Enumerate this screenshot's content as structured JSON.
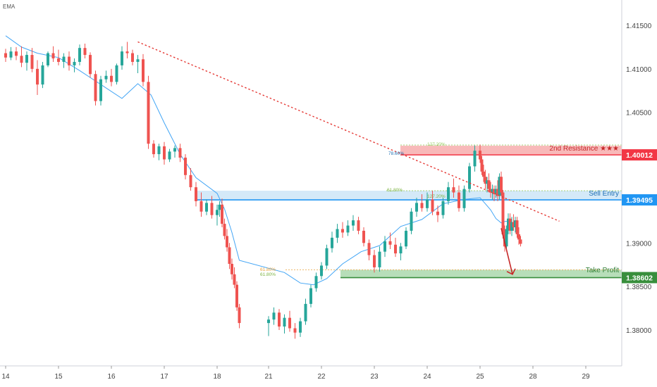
{
  "indicator_label": "EMA",
  "colors": {
    "up": "#26a69a",
    "down": "#ef5350",
    "ema": "#42a5f5",
    "trendline": "#e53935",
    "resistance_zone": "#f6a7a7",
    "resistance_badge": "#f23645",
    "entry_zone": "#cfe7f7",
    "entry_line": "#2196f3",
    "profit_zone": "#a5d6a7",
    "profit_line": "#388e3c",
    "arrow": "#c62828",
    "fib_orange": "#e8a23a"
  },
  "price_axis": {
    "ticks": [
      "1.41500",
      "1.41000",
      "1.40500",
      "1.40000",
      "1.39500",
      "1.39000",
      "1.38500",
      "1.38000"
    ]
  },
  "time_axis": {
    "ticks": [
      "14",
      "15",
      "16",
      "17",
      "18",
      "21",
      "22",
      "23",
      "24",
      "25",
      "28",
      "29"
    ]
  },
  "levels": {
    "resistance": {
      "label": "2nd Resistance ★★★",
      "price": "1.40012",
      "price_value": 1.40012
    },
    "entry": {
      "label": "Sell Entry",
      "price": "1.39495",
      "price_value": 1.39495
    },
    "take_profit": {
      "label": "Take Profit",
      "price": "1.38602",
      "price_value": 1.38602
    }
  },
  "fib_labels": {
    "r1": "78.60%",
    "r2": "127.20%",
    "e1": "61.80%",
    "e2": "127.20%",
    "t1": "61.80%",
    "t2": "61.80%"
  },
  "chart_data": {
    "type": "candlestick",
    "x_unit": "trading day",
    "ylim": [
      1.3755,
      1.4192
    ],
    "annotations": [
      "2nd Resistance ★★★ 1.40012",
      "Sell Entry 1.39495",
      "Take Profit 1.38602"
    ],
    "trendline": {
      "from": [
        "16",
        1.4131
      ],
      "to": [
        "28",
        1.3925
      ]
    },
    "ema_path": [
      [
        14,
        1.4138
      ],
      [
        14.3,
        1.4125
      ],
      [
        14.6,
        1.4118
      ],
      [
        15,
        1.4113
      ],
      [
        15.4,
        1.4098
      ],
      [
        15.8,
        1.4082
      ],
      [
        16.2,
        1.4066
      ],
      [
        16.5,
        1.4083
      ],
      [
        16.75,
        1.407
      ],
      [
        17,
        1.4038
      ],
      [
        17.3,
        1.4002
      ],
      [
        17.6,
        1.3975
      ],
      [
        18,
        1.3957
      ],
      [
        18.3,
        1.3939
      ],
      [
        18.6,
        1.3912
      ],
      [
        18.9,
        1.388
      ],
      [
        19.3,
        1.3866
      ],
      [
        19.6,
        1.3854
      ],
      [
        19.85,
        1.3852
      ],
      [
        20.1,
        1.3859
      ],
      [
        20.4,
        1.3876
      ],
      [
        20.75,
        1.389
      ],
      [
        21.1,
        1.3897
      ],
      [
        21.5,
        1.3919
      ],
      [
        21.9,
        1.3927
      ],
      [
        22.3,
        1.3945
      ],
      [
        22.7,
        1.395
      ],
      [
        23,
        1.3952
      ],
      [
        23.3,
        1.3945
      ],
      [
        23.6,
        1.3938
      ],
      [
        23.9,
        1.3928
      ],
      [
        24.2,
        1.3923
      ],
      [
        24.45,
        1.3925
      ],
      [
        24.8,
        1.3924
      ],
      [
        25,
        1.392
      ]
    ],
    "ohlc": [
      [
        14.0,
        1.4118,
        1.4123,
        1.4108,
        1.4113
      ],
      [
        14.1,
        1.4113,
        1.4125,
        1.411,
        1.412
      ],
      [
        14.2,
        1.412,
        1.4125,
        1.411,
        1.4115
      ],
      [
        14.3,
        1.4115,
        1.4126,
        1.4102,
        1.4107
      ],
      [
        14.4,
        1.4107,
        1.412,
        1.4098,
        1.4116
      ],
      [
        14.5,
        1.4116,
        1.4124,
        1.4096,
        1.41
      ],
      [
        14.6,
        1.41,
        1.411,
        1.407,
        1.4082
      ],
      [
        14.7,
        1.4082,
        1.4108,
        1.4078,
        1.4104
      ],
      [
        14.8,
        1.4104,
        1.412,
        1.4102,
        1.4118
      ],
      [
        14.9,
        1.4118,
        1.4126,
        1.4108,
        1.4112
      ],
      [
        15.0,
        1.4112,
        1.4122,
        1.4104,
        1.4108
      ],
      [
        15.1,
        1.4108,
        1.4118,
        1.4101,
        1.4114
      ],
      [
        15.2,
        1.4114,
        1.412,
        1.4098,
        1.4104
      ],
      [
        15.3,
        1.4104,
        1.4112,
        1.4096,
        1.4108
      ],
      [
        15.4,
        1.4108,
        1.4128,
        1.4104,
        1.4124
      ],
      [
        15.5,
        1.4124,
        1.4129,
        1.4112,
        1.4116
      ],
      [
        15.6,
        1.4116,
        1.4119,
        1.409,
        1.4094
      ],
      [
        15.7,
        1.4094,
        1.4098,
        1.4058,
        1.4063
      ],
      [
        15.8,
        1.4063,
        1.4092,
        1.4058,
        1.4088
      ],
      [
        15.9,
        1.4088,
        1.4098,
        1.4084,
        1.4092
      ],
      [
        16.0,
        1.4092,
        1.41,
        1.408,
        1.4085
      ],
      [
        16.1,
        1.4085,
        1.4106,
        1.4082,
        1.4104
      ],
      [
        16.2,
        1.4104,
        1.4126,
        1.4099,
        1.412
      ],
      [
        16.3,
        1.412,
        1.4131,
        1.4112,
        1.4118
      ],
      [
        16.4,
        1.4118,
        1.4122,
        1.4104,
        1.4108
      ],
      [
        16.5,
        1.4108,
        1.4116,
        1.4095,
        1.4111
      ],
      [
        16.6,
        1.4111,
        1.4117,
        1.408,
        1.4085
      ],
      [
        16.7,
        1.4085,
        1.4092,
        1.4008,
        1.4014
      ],
      [
        16.8,
        1.4014,
        1.4018,
        1.3998,
        1.4002
      ],
      [
        16.9,
        1.4002,
        1.4014,
        1.3995,
        1.4011
      ],
      [
        17.0,
        1.4011,
        1.4016,
        1.399,
        1.3996
      ],
      [
        17.1,
        1.3996,
        1.4008,
        1.3993,
        1.4005
      ],
      [
        17.2,
        1.4005,
        1.4012,
        1.3998,
        1.4009
      ],
      [
        17.3,
        1.4009,
        1.4014,
        1.3993,
        1.3998
      ],
      [
        17.4,
        1.3998,
        1.4002,
        1.3973,
        1.3978
      ],
      [
        17.5,
        1.3978,
        1.3986,
        1.396,
        1.3964
      ],
      [
        17.6,
        1.3964,
        1.397,
        1.3942,
        1.3948
      ],
      [
        17.7,
        1.3948,
        1.3958,
        1.393,
        1.3936
      ],
      [
        17.8,
        1.3936,
        1.395,
        1.3932,
        1.3946
      ],
      [
        17.9,
        1.3946,
        1.3954,
        1.3928,
        1.3932
      ],
      [
        18.0,
        1.3932,
        1.3944,
        1.392,
        1.3938
      ],
      [
        18.1,
        1.3938,
        1.3948,
        1.393,
        1.3944
      ],
      [
        18.2,
        1.3944,
        1.3951,
        1.3918,
        1.3922
      ],
      [
        18.3,
        1.3922,
        1.3928,
        1.3904,
        1.3908
      ],
      [
        18.4,
        1.3908,
        1.3916,
        1.389,
        1.3895
      ],
      [
        18.5,
        1.3895,
        1.39,
        1.387,
        1.3876
      ],
      [
        18.6,
        1.3876,
        1.3882,
        1.3858,
        1.3864
      ],
      [
        18.7,
        1.3864,
        1.3872,
        1.3848,
        1.3852
      ],
      [
        18.8,
        1.3852,
        1.3856,
        1.3822,
        1.3826
      ],
      [
        18.9,
        1.3826,
        1.383,
        1.3802,
        1.3808
      ],
      [
        19.0,
        1.3808,
        1.3816,
        1.3793,
        1.3812
      ],
      [
        19.1,
        1.3812,
        1.3826,
        1.3806,
        1.382
      ],
      [
        19.2,
        1.382,
        1.3824,
        1.38,
        1.3804
      ],
      [
        19.3,
        1.3804,
        1.3818,
        1.3796,
        1.3814
      ],
      [
        19.4,
        1.3814,
        1.3822,
        1.3798,
        1.3802
      ],
      [
        19.5,
        1.3802,
        1.3808,
        1.379,
        1.3797
      ],
      [
        19.6,
        1.3797,
        1.3814,
        1.3792,
        1.381
      ],
      [
        19.7,
        1.381,
        1.3836,
        1.3806,
        1.383
      ],
      [
        19.8,
        1.383,
        1.3852,
        1.3826,
        1.3848
      ],
      [
        19.9,
        1.3848,
        1.3866,
        1.3844,
        1.3862
      ],
      [
        20.0,
        1.3862,
        1.3878,
        1.3858,
        1.3874
      ],
      [
        20.1,
        1.3874,
        1.3898,
        1.387,
        1.3894
      ],
      [
        20.2,
        1.3894,
        1.3913,
        1.3889,
        1.3906
      ],
      [
        20.3,
        1.3906,
        1.3922,
        1.39,
        1.3916
      ],
      [
        20.4,
        1.3916,
        1.3924,
        1.3906,
        1.3912
      ],
      [
        20.5,
        1.3912,
        1.3926,
        1.3908,
        1.392
      ],
      [
        20.6,
        1.392,
        1.3932,
        1.3914,
        1.3926
      ],
      [
        20.7,
        1.3926,
        1.393,
        1.391,
        1.3914
      ],
      [
        20.8,
        1.3914,
        1.3918,
        1.3896,
        1.39
      ],
      [
        20.9,
        1.39,
        1.3904,
        1.388,
        1.3886
      ],
      [
        21.0,
        1.3886,
        1.3892,
        1.3866,
        1.3872
      ],
      [
        21.1,
        1.3872,
        1.3896,
        1.3867,
        1.389
      ],
      [
        21.2,
        1.389,
        1.3908,
        1.3884,
        1.3902
      ],
      [
        21.3,
        1.3902,
        1.3912,
        1.3893,
        1.3898
      ],
      [
        21.4,
        1.3898,
        1.3906,
        1.3884,
        1.3888
      ],
      [
        21.5,
        1.3888,
        1.39,
        1.388,
        1.3896
      ],
      [
        21.6,
        1.3896,
        1.3918,
        1.3893,
        1.3914
      ],
      [
        21.7,
        1.3914,
        1.394,
        1.391,
        1.3936
      ],
      [
        21.8,
        1.3936,
        1.3952,
        1.393,
        1.3946
      ],
      [
        21.9,
        1.3946,
        1.3956,
        1.3936,
        1.394
      ],
      [
        22.0,
        1.394,
        1.3958,
        1.3936,
        1.395
      ],
      [
        22.1,
        1.395,
        1.396,
        1.3932,
        1.3936
      ],
      [
        22.2,
        1.3936,
        1.3943,
        1.3924,
        1.3932
      ],
      [
        22.3,
        1.3932,
        1.3952,
        1.3928,
        1.3948
      ],
      [
        22.4,
        1.3948,
        1.397,
        1.3944,
        1.3964
      ],
      [
        22.5,
        1.3964,
        1.3974,
        1.3952,
        1.3958
      ],
      [
        22.6,
        1.3958,
        1.3966,
        1.3936,
        1.394
      ],
      [
        22.7,
        1.394,
        1.3966,
        1.3936,
        1.3962
      ],
      [
        22.8,
        1.3962,
        1.3992,
        1.3958,
        1.3988
      ],
      [
        22.9,
        1.3988,
        1.4012,
        1.3982,
        1.4006
      ],
      [
        23.0,
        1.4006,
        1.4013,
        1.3992,
        1.3996
      ],
      [
        23.1,
        1.3996,
        1.4,
        1.3978,
        1.3982
      ],
      [
        23.2,
        1.3982,
        1.399,
        1.397,
        1.3976
      ],
      [
        23.3,
        1.3976,
        1.3984,
        1.3962,
        1.3968
      ],
      [
        23.4,
        1.3968,
        1.3976,
        1.3958,
        1.3972
      ],
      [
        23.5,
        1.3972,
        1.398,
        1.3958,
        1.3962
      ],
      [
        23.6,
        1.3962,
        1.397,
        1.3952,
        1.3958
      ],
      [
        23.7,
        1.3958,
        1.3967,
        1.395,
        1.3962
      ],
      [
        23.8,
        1.3962,
        1.3966,
        1.3948,
        1.3956
      ],
      [
        23.9,
        1.3956,
        1.3966,
        1.3952,
        1.3962
      ],
      [
        24.0,
        1.3962,
        1.3972,
        1.3948,
        1.3954
      ],
      [
        24.1,
        1.3954,
        1.398,
        1.395,
        1.3976
      ],
      [
        24.2,
        1.3976,
        1.3982,
        1.3954,
        1.3958
      ],
      [
        24.3,
        1.3958,
        1.3961,
        1.3905,
        1.391
      ],
      [
        24.4,
        1.391,
        1.392,
        1.389,
        1.3896
      ],
      [
        24.5,
        1.3896,
        1.392,
        1.3892,
        1.3916
      ],
      [
        24.6,
        1.3916,
        1.3934,
        1.391,
        1.3928
      ],
      [
        24.7,
        1.3928,
        1.3934,
        1.391,
        1.3914
      ],
      [
        24.8,
        1.3914,
        1.393,
        1.3908,
        1.3924
      ],
      [
        24.9,
        1.3924,
        1.3933,
        1.3914,
        1.3918
      ],
      [
        25.0,
        1.3918,
        1.393,
        1.3912,
        1.3926
      ],
      [
        25.1,
        1.3926,
        1.393,
        1.3906,
        1.391
      ],
      [
        25.2,
        1.391,
        1.3918,
        1.3898,
        1.3904
      ],
      [
        25.3,
        1.3904,
        1.3908,
        1.3896,
        1.3899
      ]
    ]
  }
}
